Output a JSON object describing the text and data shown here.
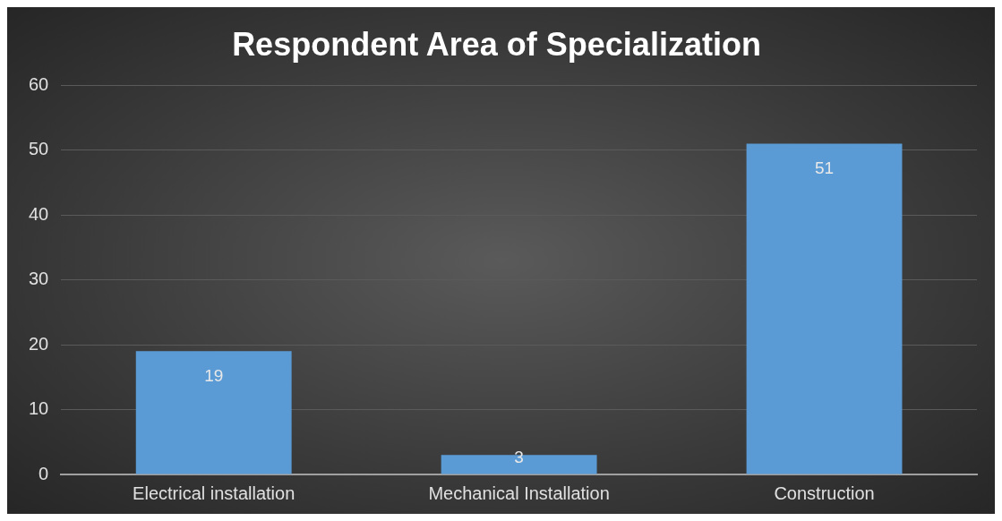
{
  "chart_data": {
    "type": "bar",
    "title": "Respondent Area of Specialization",
    "categories": [
      "Electrical installation",
      "Mechanical Installation",
      "Construction"
    ],
    "values": [
      19,
      3,
      51
    ],
    "color": "#5b9bd5",
    "ylim": [
      0,
      60
    ],
    "yticks": [
      0,
      10,
      20,
      30,
      40,
      50,
      60
    ],
    "grid": "y",
    "data_labels": true,
    "legend": false
  }
}
